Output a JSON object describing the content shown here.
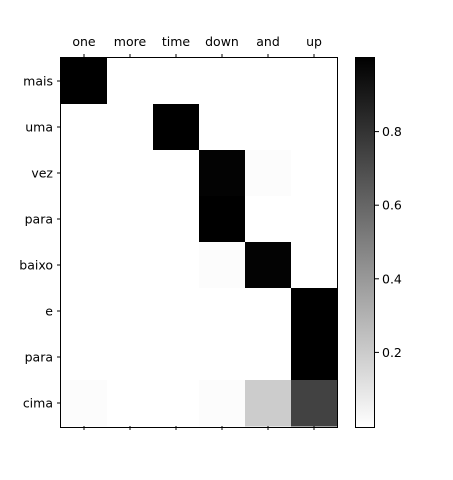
{
  "chart_data": {
    "type": "heatmap",
    "title": "",
    "x_labels": [
      "one",
      "more",
      "time",
      "down",
      "and",
      "up"
    ],
    "y_labels": [
      "mais",
      "uma",
      "vez",
      "para",
      "baixo",
      "e",
      "para",
      "cima"
    ],
    "x_axis_position": "top",
    "values": [
      [
        1.0,
        0.0,
        0.0,
        0.0,
        0.0,
        0.0
      ],
      [
        0.0,
        0.0,
        1.0,
        0.0,
        0.0,
        0.0
      ],
      [
        0.0,
        0.0,
        0.0,
        0.99,
        0.01,
        0.0
      ],
      [
        0.0,
        0.0,
        0.0,
        1.0,
        0.0,
        0.0
      ],
      [
        0.0,
        0.0,
        0.0,
        0.01,
        0.99,
        0.0
      ],
      [
        0.0,
        0.0,
        0.0,
        0.0,
        0.0,
        1.0
      ],
      [
        0.0,
        0.0,
        0.0,
        0.0,
        0.0,
        1.0
      ],
      [
        0.01,
        0.0,
        0.0,
        0.01,
        0.2,
        0.74
      ]
    ],
    "colormap": "gray_r",
    "colorbar": {
      "range": [
        0,
        1
      ],
      "ticks": [
        0.2,
        0.4,
        0.6,
        0.8
      ],
      "tick_labels": [
        "0.2",
        "0.4",
        "0.6",
        "0.8"
      ]
    },
    "grid": false
  }
}
